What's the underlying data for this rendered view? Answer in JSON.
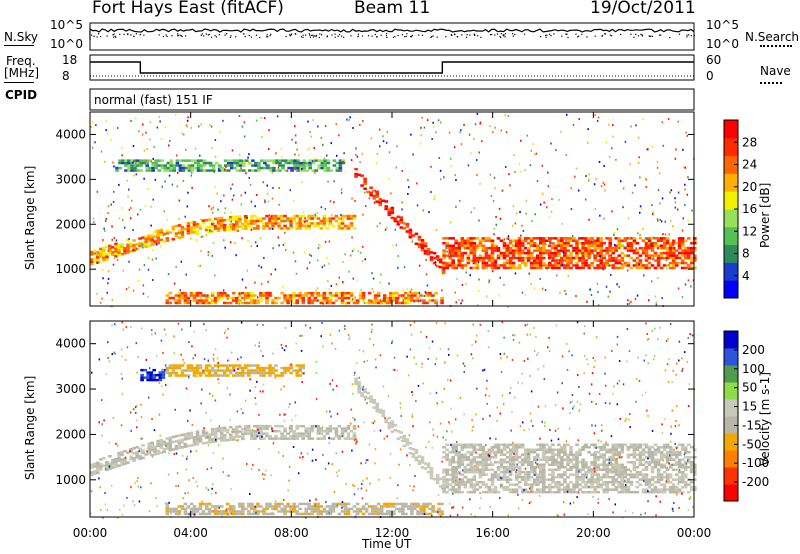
{
  "header": {
    "title": "Fort Hays East (fitACF)",
    "beam": "Beam 11",
    "date": "19/Oct/2011"
  },
  "top_panels": {
    "nsky_label": "N.Sky",
    "nsky_ticks": [
      "10^5",
      "10^0"
    ],
    "nsearch_label": "N.Search",
    "nsearch_ticks": [
      "10^5",
      "10^0"
    ],
    "freq_label_1": "Freq.",
    "freq_label_2": "[MHz]",
    "freq_ticks": [
      "18",
      "8"
    ],
    "nave_label": "Nave",
    "nave_ticks": [
      "60",
      "0"
    ],
    "cpid_label": "CPID",
    "cpid_value": "normal (fast) 151 IF"
  },
  "colors": {
    "power_scale": [
      "#0000ff",
      "#1a3ccf",
      "#2f8a5a",
      "#56bf56",
      "#96e05a",
      "#f2f200",
      "#ffb000",
      "#ff6600",
      "#ff2a00",
      "#ff0000"
    ],
    "velocity_scale": [
      "#0000cc",
      "#2a55d8",
      "#4f9c4f",
      "#8fdc4a",
      "#c8c8b8",
      "#b8b8a8",
      "#f2a800",
      "#ff8000",
      "#ff3300",
      "#ff0000"
    ]
  },
  "chart_data": [
    {
      "type": "heatmap",
      "title": "",
      "xlabel": "Time UT",
      "ylabel": "Slant Range [km]",
      "x_ticks": [
        "00:00",
        "04:00",
        "08:00",
        "12:00",
        "16:00",
        "20:00",
        "00:00"
      ],
      "y_ticks": [
        "1000",
        "2000",
        "3000",
        "4000"
      ],
      "x_range_hours": [
        0,
        24
      ],
      "ylim": [
        180,
        4500
      ],
      "colorbar_label": "Power [dB]",
      "colorbar_ticks": [
        "4",
        "8",
        "12",
        "16",
        "20",
        "24",
        "28"
      ],
      "colorbar_range": [
        0,
        30
      ],
      "features": [
        {
          "name": "lower_band",
          "t_start": 0.0,
          "t_end": 10.5,
          "range_start": 1300,
          "range_peak": 2100,
          "power": 20
        },
        {
          "name": "upper_band",
          "t_start": 1.0,
          "t_end": 10.0,
          "range": 3300,
          "power": 10
        },
        {
          "name": "descending_trace",
          "t_start": 10.5,
          "t_end": 14.0,
          "range_start": 3100,
          "range_end": 1000,
          "power": 26
        },
        {
          "name": "evening_band",
          "t_start": 14.0,
          "t_end": 24.0,
          "range_low": 1000,
          "range_high": 1700,
          "power": 24
        },
        {
          "name": "ground_scatter_low",
          "t_start": 3.0,
          "t_end": 14.0,
          "range": 350,
          "power": 22
        }
      ]
    },
    {
      "type": "heatmap",
      "title": "",
      "xlabel": "Time UT",
      "ylabel": "Slant Range [km]",
      "x_ticks": [
        "00:00",
        "04:00",
        "08:00",
        "12:00",
        "16:00",
        "20:00",
        "00:00"
      ],
      "y_ticks": [
        "1000",
        "2000",
        "3000",
        "4000"
      ],
      "x_range_hours": [
        0,
        24
      ],
      "ylim": [
        180,
        4500
      ],
      "colorbar_label": "Velocity [m s-1]",
      "colorbar_ticks": [
        "200",
        "100",
        "50",
        "15",
        "-15",
        "-50",
        "-100",
        "-200"
      ],
      "colorbar_range": [
        -250,
        250
      ],
      "features": [
        {
          "name": "lower_band",
          "t_start": 0.0,
          "t_end": 10.5,
          "range_start": 1300,
          "range_peak": 2100,
          "velocity": 0
        },
        {
          "name": "upper_band_fast",
          "t_start": 2.0,
          "t_end": 3.0,
          "range": 3300,
          "velocity": 200
        },
        {
          "name": "upper_band",
          "t_start": 3.0,
          "t_end": 8.5,
          "range": 3400,
          "velocity": -60
        },
        {
          "name": "descending_trace",
          "t_start": 10.5,
          "t_end": 14.0,
          "range_start": 3100,
          "range_end": 800,
          "velocity": 30
        },
        {
          "name": "evening_band",
          "t_start": 14.0,
          "t_end": 24.0,
          "range_low": 700,
          "range_high": 1800,
          "velocity": 0
        },
        {
          "name": "ground_scatter_low",
          "t_start": 3.0,
          "t_end": 14.0,
          "range": 350,
          "velocity": -40
        }
      ]
    }
  ]
}
